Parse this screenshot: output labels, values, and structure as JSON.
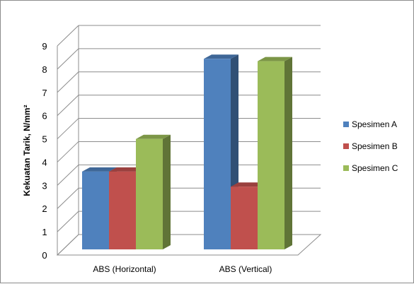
{
  "chart_data": {
    "type": "bar",
    "title": "",
    "xlabel": "",
    "ylabel": "Kekuatan Tarik, N/mm²",
    "ylim": [
      0,
      9
    ],
    "yticks": [
      0,
      1,
      2,
      3,
      4,
      5,
      6,
      7,
      8,
      9
    ],
    "categories": [
      "ABS (Horizontal)",
      "ABS (Vertical)"
    ],
    "series": [
      {
        "name": "Spesimen A",
        "values": [
          3.35,
          8.2
        ],
        "color": "#4f81bd"
      },
      {
        "name": "Spesimen B",
        "values": [
          3.35,
          2.7
        ],
        "color": "#c0504d"
      },
      {
        "name": "Spesimen C",
        "values": [
          4.75,
          8.1
        ],
        "color": "#9bbb59"
      }
    ],
    "grid": true,
    "legend_position": "right",
    "style": "3d-clustered-column"
  }
}
